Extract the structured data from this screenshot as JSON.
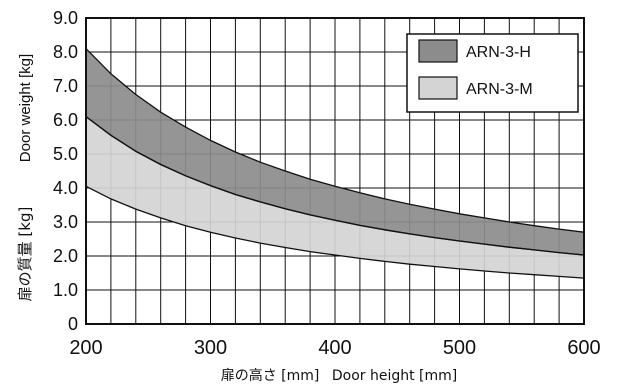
{
  "chart_data": {
    "type": "area",
    "xlabel_jp": "扉の高さ [mm]",
    "xlabel_en": "Door height [mm]",
    "ylabel_en": "Door weight [kg]",
    "ylabel_jp": "扉の質量 [kg]",
    "xlim": [
      200,
      600
    ],
    "ylim": [
      0,
      9
    ],
    "x_ticks": [
      200,
      300,
      400,
      500,
      600
    ],
    "y_ticks": [
      "0",
      "1.0",
      "2.0",
      "3.0",
      "4.0",
      "5.0",
      "6.0",
      "7.0",
      "8.0",
      "9.0"
    ],
    "grid": true,
    "legend_position": "top-right",
    "x": [
      200,
      220,
      240,
      260,
      280,
      300,
      320,
      340,
      360,
      380,
      400,
      420,
      440,
      460,
      480,
      500,
      520,
      540,
      560,
      580,
      600
    ],
    "series": [
      {
        "name": "ARN-3-H",
        "color": "#8c8c8c",
        "lower": [
          6.1,
          5.55,
          5.08,
          4.69,
          4.36,
          4.07,
          3.81,
          3.59,
          3.39,
          3.21,
          3.05,
          2.9,
          2.77,
          2.65,
          2.54,
          2.44,
          2.35,
          2.26,
          2.18,
          2.1,
          2.03
        ],
        "upper": [
          8.1,
          7.36,
          6.75,
          6.23,
          5.79,
          5.4,
          5.06,
          4.76,
          4.5,
          4.26,
          4.05,
          3.86,
          3.68,
          3.52,
          3.38,
          3.24,
          3.12,
          3.0,
          2.89,
          2.79,
          2.7
        ]
      },
      {
        "name": "ARN-3-M",
        "color": "#d4d4d4",
        "lower": [
          4.05,
          3.68,
          3.38,
          3.12,
          2.89,
          2.7,
          2.53,
          2.38,
          2.25,
          2.13,
          2.03,
          1.93,
          1.84,
          1.76,
          1.69,
          1.62,
          1.56,
          1.5,
          1.45,
          1.4,
          1.35
        ],
        "upper": [
          6.1,
          5.55,
          5.08,
          4.69,
          4.36,
          4.07,
          3.81,
          3.59,
          3.39,
          3.21,
          3.05,
          2.9,
          2.77,
          2.65,
          2.54,
          2.44,
          2.35,
          2.26,
          2.18,
          2.1,
          2.03
        ]
      }
    ]
  }
}
